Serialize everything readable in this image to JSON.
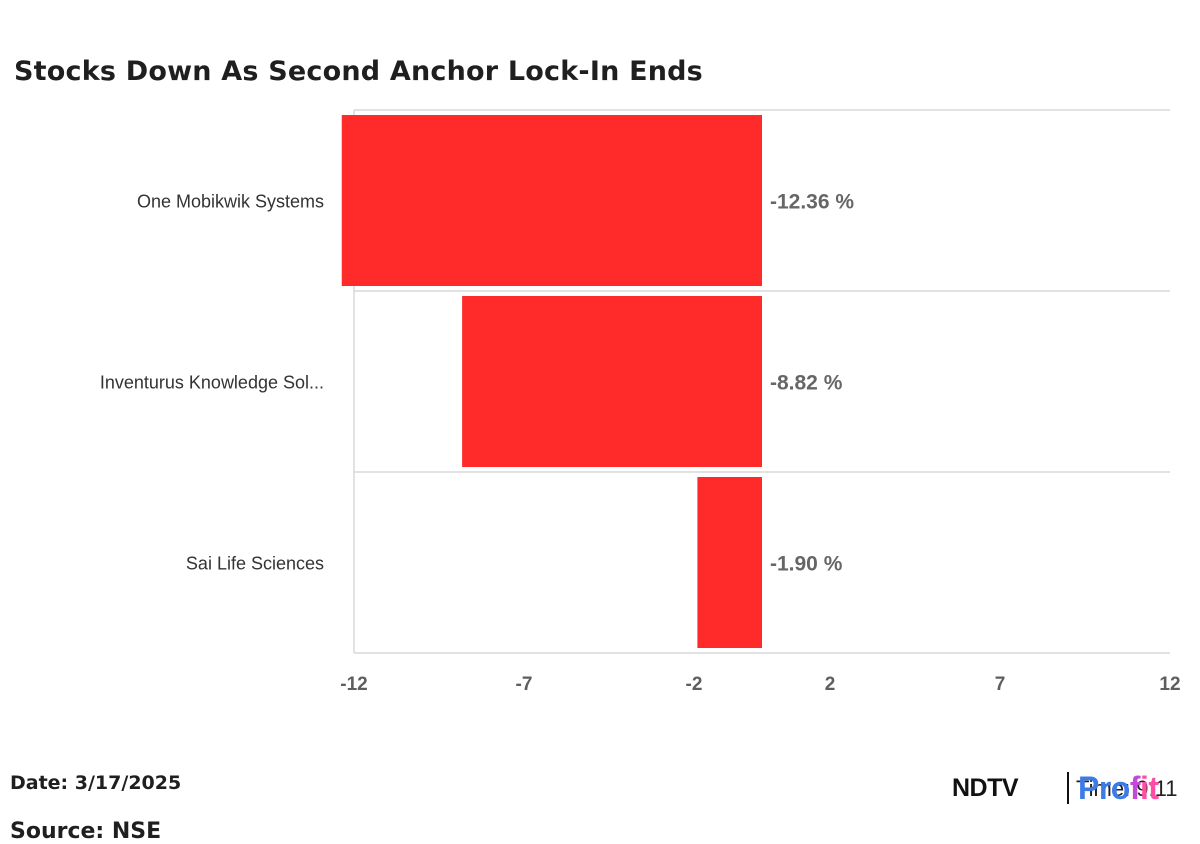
{
  "title": "Stocks Down As Second Anchor Lock-In Ends",
  "footer": {
    "date": "Date: 3/17/2025",
    "source": "Source: NSE",
    "time_partial": "Time: 9:11"
  },
  "brand": {
    "name_part1": "NDTV",
    "name_part2a": "Pro",
    "name_part2b": "f",
    "name_part2c": "it"
  },
  "colors": {
    "bar": "#ff2a2a",
    "grid": "#d9d9d9",
    "axis_text": "#5e5e5e",
    "label_text": "#333333",
    "value_text": "#666666"
  },
  "chart_data": {
    "type": "bar",
    "orientation": "horizontal",
    "title": "Stocks Down As Second Anchor Lock-In Ends",
    "categories": [
      "One Mobikwik Systems",
      "Inventurus Knowledge Sol...",
      "Sai Life Sciences"
    ],
    "values": [
      -12.36,
      -8.82,
      -1.9
    ],
    "data_labels": [
      "-12.36 %",
      "-8.82 %",
      "-1.90 %"
    ],
    "xlim": [
      -12,
      12
    ],
    "xticks": [
      -12,
      -7,
      -2,
      2,
      7,
      12
    ],
    "xtick_labels": [
      "-12",
      "-7",
      "-2",
      "2",
      "7",
      "12"
    ],
    "grid": true,
    "legend": false
  }
}
